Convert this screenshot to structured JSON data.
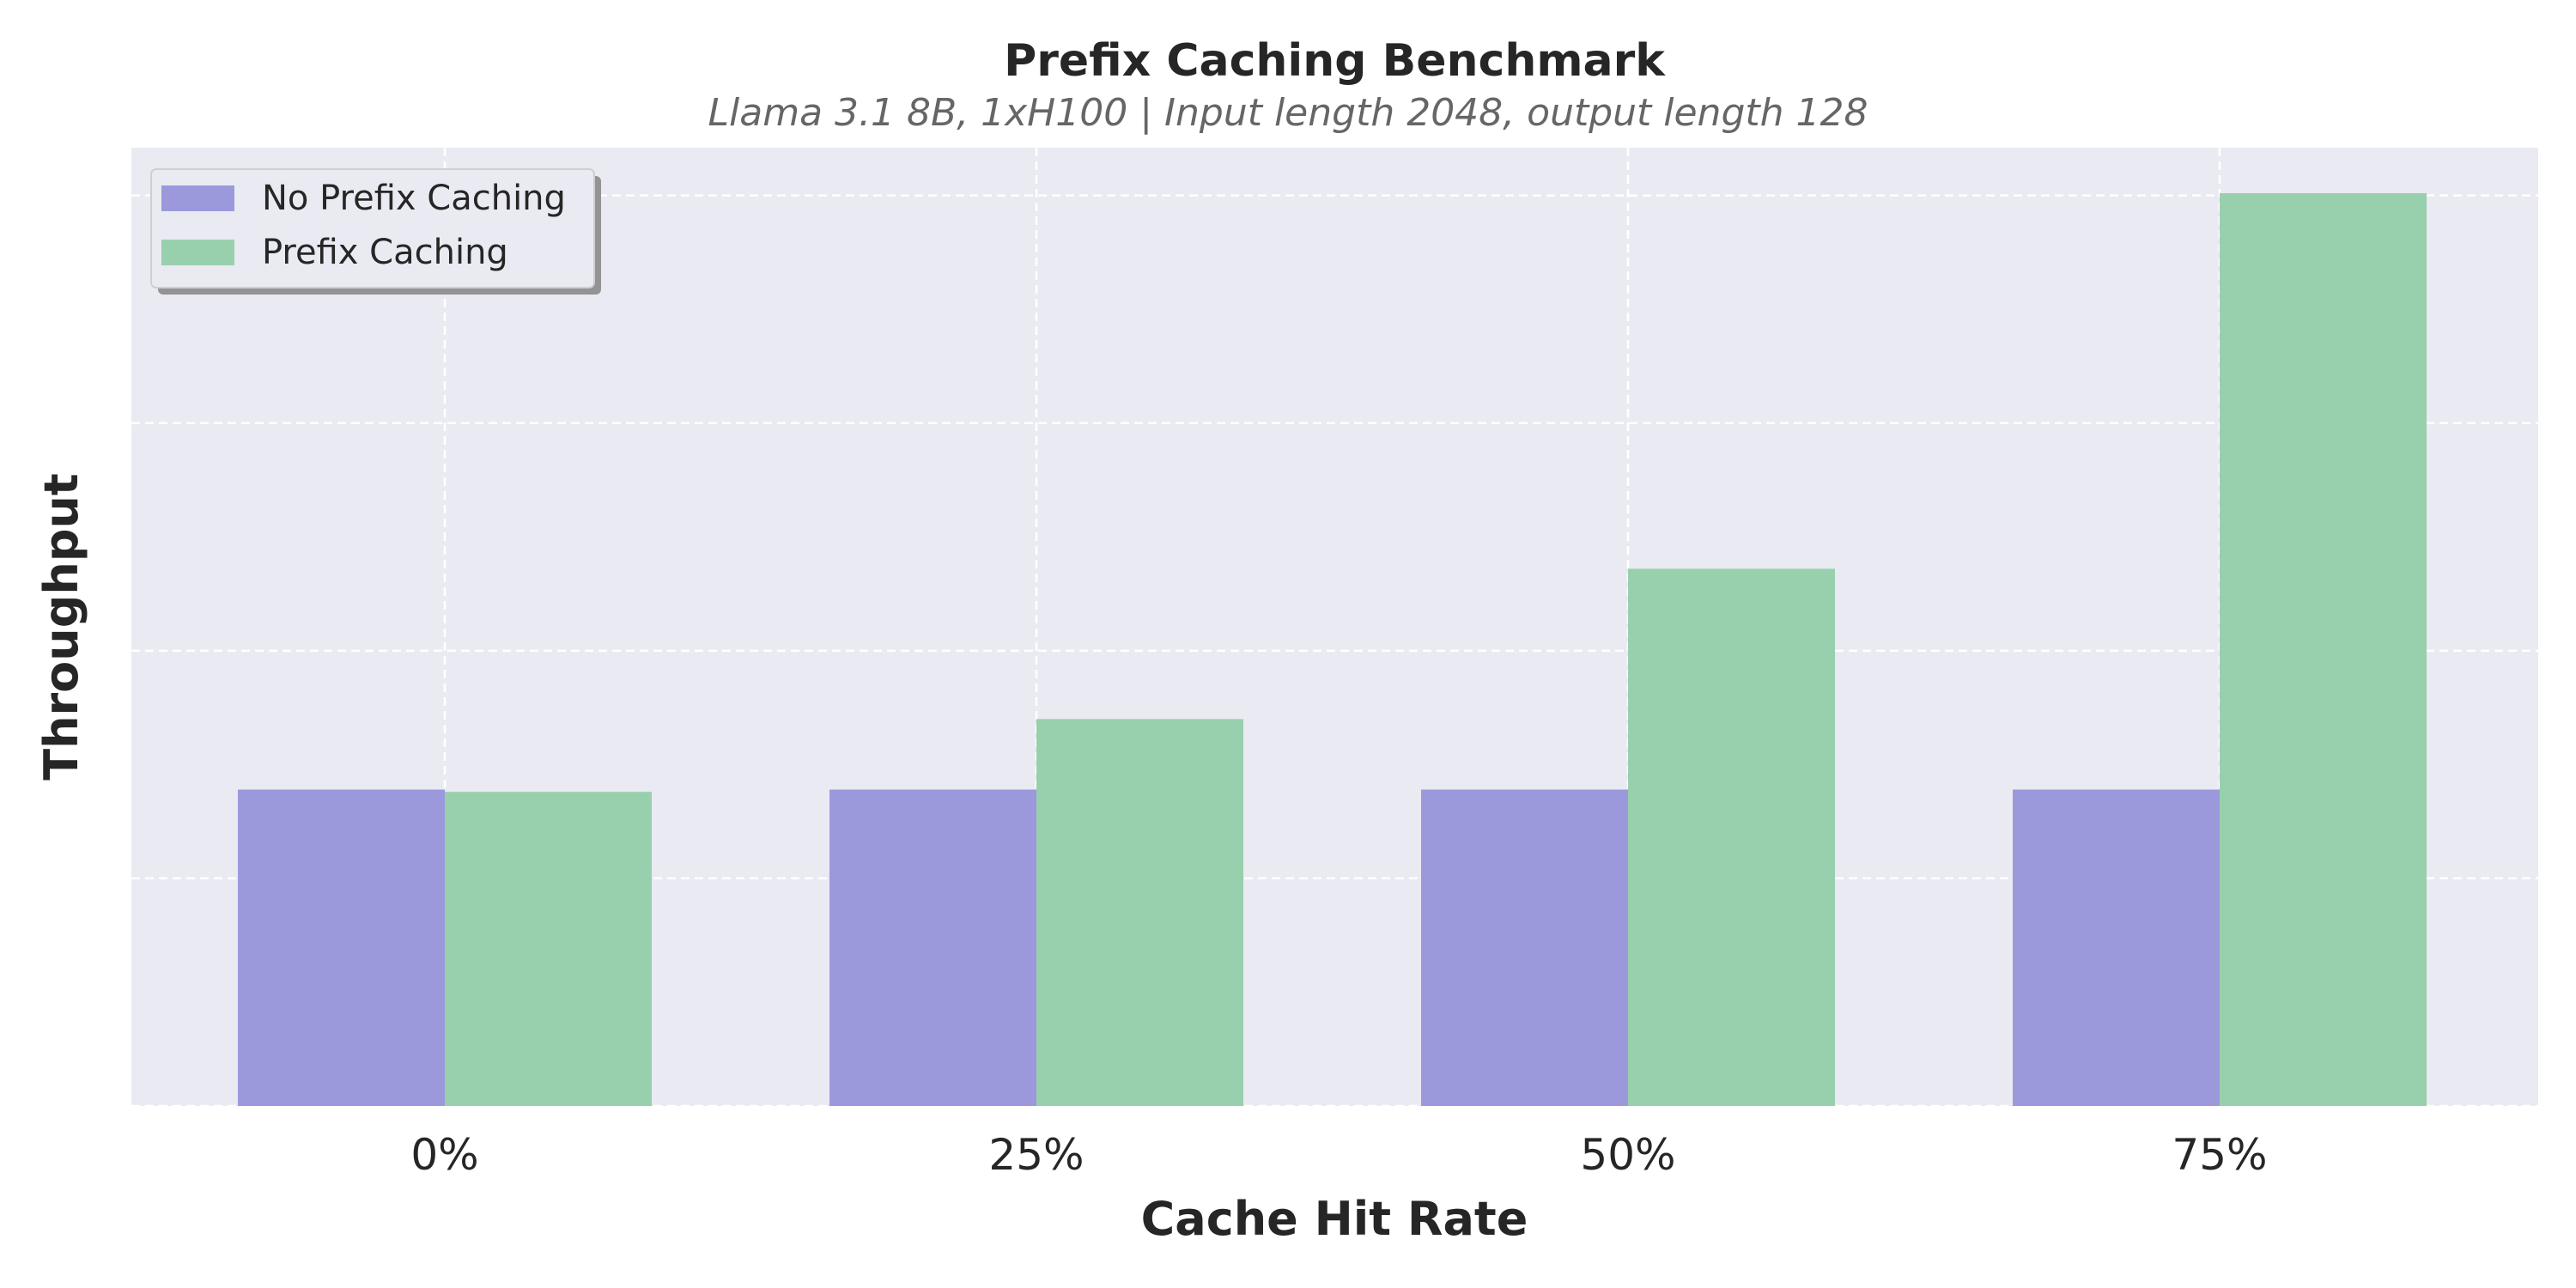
{
  "chart_data": {
    "type": "bar",
    "title": "Prefix Caching Benchmark",
    "subtitle": "Llama 3.1 8B, 1xH100 | Input length 2048, output length 128",
    "xlabel": "Cache Hit Rate",
    "ylabel": "Throughput",
    "categories": [
      "0%",
      "25%",
      "50%",
      "75%"
    ],
    "series": [
      {
        "name": "No Prefix Caching",
        "color": "#9b99dc",
        "values": [
          1.39,
          1.39,
          1.39,
          1.39
        ]
      },
      {
        "name": "Prefix Caching",
        "color": "#98d0ae",
        "values": [
          1.38,
          1.7,
          2.36,
          4.01
        ]
      }
    ],
    "ylim": [
      0,
      4.21
    ],
    "yticks": [
      0,
      1,
      2,
      3,
      4
    ],
    "ytick_labels_shown": false,
    "grid": true,
    "grid_style": "dashed white",
    "background": "#eaeaf2",
    "legend_position": "top-left"
  }
}
